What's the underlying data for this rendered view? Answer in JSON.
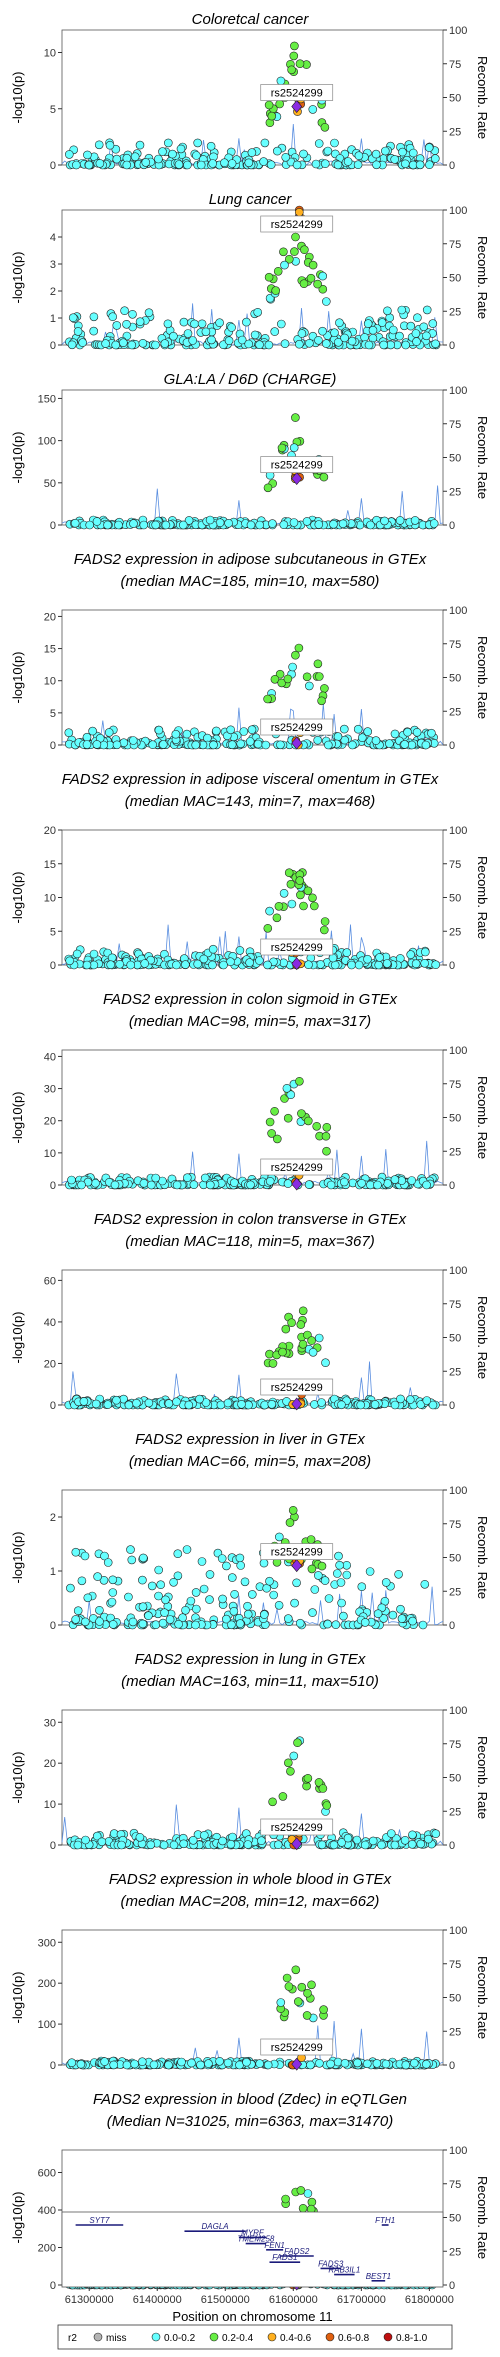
{
  "chart_data": {
    "type": "scatter",
    "lead_snp": "rs2524299",
    "x_axis": {
      "label": "Position on chromosome 11",
      "range": [
        61260000,
        61820000
      ],
      "ticks": [
        "61300000",
        "61400000",
        "61500000",
        "61600000",
        "61700000",
        "61800000"
      ],
      "tick_values": [
        61300000,
        61400000,
        61500000,
        61600000,
        61700000,
        61800000
      ]
    },
    "left_axis_label": "-log10(p)",
    "right_axis_label": "Recomb. Rate",
    "right_axis_ticks": [
      "0",
      "25",
      "50",
      "75",
      "100"
    ],
    "panels": [
      {
        "title": [
          "Coloretcal cancer"
        ],
        "ylim": [
          0,
          12
        ],
        "yticks": [
          "0",
          "5",
          "10"
        ],
        "ytick_values": [
          0,
          5,
          10
        ],
        "peak": 11.2,
        "lead": 5.2,
        "bg": 2.0
      },
      {
        "title": [
          "Lung cancer"
        ],
        "ylim": [
          0,
          5
        ],
        "yticks": [
          "0",
          "1",
          "2",
          "3",
          "4"
        ],
        "ytick_values": [
          0,
          1,
          2,
          3,
          4
        ],
        "peak": 4.6,
        "lead": 4.6,
        "bg": 1.3
      },
      {
        "title": [
          "GLA:LA / D6D (CHARGE)"
        ],
        "ylim": [
          0,
          160
        ],
        "yticks": [
          "0",
          "50",
          "100",
          "150"
        ],
        "ytick_values": [
          0,
          50,
          100,
          150
        ],
        "peak": 130,
        "lead": 55,
        "bg": 6
      },
      {
        "title": [
          "FADS2 expression in adipose subcutaneous in GTEx",
          "(median MAC=185, min=10, max=580)"
        ],
        "ylim": [
          0,
          21
        ],
        "yticks": [
          "0",
          "5",
          "10",
          "15",
          "20"
        ],
        "ytick_values": [
          0,
          5,
          10,
          15,
          20
        ],
        "peak": 20,
        "lead": 0.3,
        "bg": 2.5
      },
      {
        "title": [
          "FADS2 expression in adipose visceral omentum in GTEx",
          "(median MAC=143, min=7, max=468)"
        ],
        "ylim": [
          0,
          20
        ],
        "yticks": [
          "0",
          "5",
          "10",
          "15",
          "20"
        ],
        "ytick_values": [
          0,
          5,
          10,
          15,
          20
        ],
        "peak": 16,
        "lead": 0.2,
        "bg": 2.5
      },
      {
        "title": [
          "FADS2 expression in colon sigmoid in GTEx",
          "(median MAC=98, min=5, max=317)"
        ],
        "ylim": [
          0,
          42
        ],
        "yticks": [
          "0",
          "10",
          "20",
          "30",
          "40"
        ],
        "ytick_values": [
          0,
          10,
          20,
          30,
          40
        ],
        "peak": 36,
        "lead": 0.3,
        "bg": 2.5
      },
      {
        "title": [
          "FADS2 expression in colon transverse in GTEx",
          "(median MAC=118, min=5, max=367)"
        ],
        "ylim": [
          0,
          65
        ],
        "yticks": [
          "0",
          "20",
          "40",
          "60"
        ],
        "ytick_values": [
          0,
          20,
          40,
          60
        ],
        "peak": 51,
        "lead": 0.5,
        "bg": 3
      },
      {
        "title": [
          "FADS2 expression in liver in GTEx",
          "(median MAC=66, min=5, max=208)"
        ],
        "ylim": [
          0,
          2.5
        ],
        "yticks": [
          "0",
          "1",
          "2"
        ],
        "ytick_values": [
          0,
          1,
          2
        ],
        "peak": 2.3,
        "lead": 1.1,
        "bg": 1.4
      },
      {
        "title": [
          "FADS2 expression in lung in GTEx",
          "(median MAC=163, min=11, max=510)"
        ],
        "ylim": [
          0,
          33
        ],
        "yticks": [
          "0",
          "10",
          "20",
          "30"
        ],
        "ytick_values": [
          0,
          10,
          20,
          30
        ],
        "peak": 27,
        "lead": 0.3,
        "bg": 3
      },
      {
        "title": [
          "FADS2 expression in whole blood in GTEx",
          "(median MAC=208, min=12, max=662)"
        ],
        "ylim": [
          0,
          330
        ],
        "yticks": [
          "0",
          "100",
          "200",
          "300"
        ],
        "ytick_values": [
          0,
          100,
          200,
          300
        ],
        "peak": 265,
        "lead": 2,
        "bg": 10
      },
      {
        "title": [
          "FADS2 expression in blood (Zdec) in eQTLGen",
          "(Median N=31025, min=6363, max=31470)"
        ],
        "ylim": [
          0,
          720
        ],
        "yticks": [
          "0",
          "200",
          "400",
          "600"
        ],
        "ytick_values": [
          0,
          200,
          400,
          600
        ],
        "peak": 610,
        "lead": 5,
        "bg": 20
      }
    ],
    "genes": [
      {
        "name": "SYT7",
        "start": 61280000,
        "end": 61350000,
        "row": 0
      },
      {
        "name": "DAGLA",
        "start": 61440000,
        "end": 61530000,
        "row": 1
      },
      {
        "name": "MYRF",
        "start": 61520000,
        "end": 61560000,
        "row": 2
      },
      {
        "name": "TMEM258",
        "start": 61530000,
        "end": 61560000,
        "row": 3
      },
      {
        "name": "FEN1",
        "start": 61560000,
        "end": 61585000,
        "row": 4
      },
      {
        "name": "FADS2",
        "start": 61580000,
        "end": 61630000,
        "row": 5
      },
      {
        "name": "FADS1",
        "start": 61565000,
        "end": 61610000,
        "row": 6
      },
      {
        "name": "FADS3",
        "start": 61640000,
        "end": 61670000,
        "row": 7
      },
      {
        "name": "RAB3IL1",
        "start": 61660000,
        "end": 61690000,
        "row": 8
      },
      {
        "name": "BEST1",
        "start": 61715000,
        "end": 61735000,
        "row": 9
      },
      {
        "name": "FTH1",
        "start": 61730000,
        "end": 61740000,
        "row": 0
      }
    ],
    "legend": {
      "title": "r2",
      "entries": [
        {
          "label": "miss",
          "color": "#b4b4b4"
        },
        {
          "label": "0.0-0.2",
          "color": "#66ffff"
        },
        {
          "label": "0.2-0.4",
          "color": "#66ee44"
        },
        {
          "label": "0.4-0.6",
          "color": "#ffb020"
        },
        {
          "label": "0.6-0.8",
          "color": "#e06010"
        },
        {
          "label": "0.8-1.0",
          "color": "#c01010"
        }
      ],
      "lead_color": "#8a2be2"
    }
  }
}
